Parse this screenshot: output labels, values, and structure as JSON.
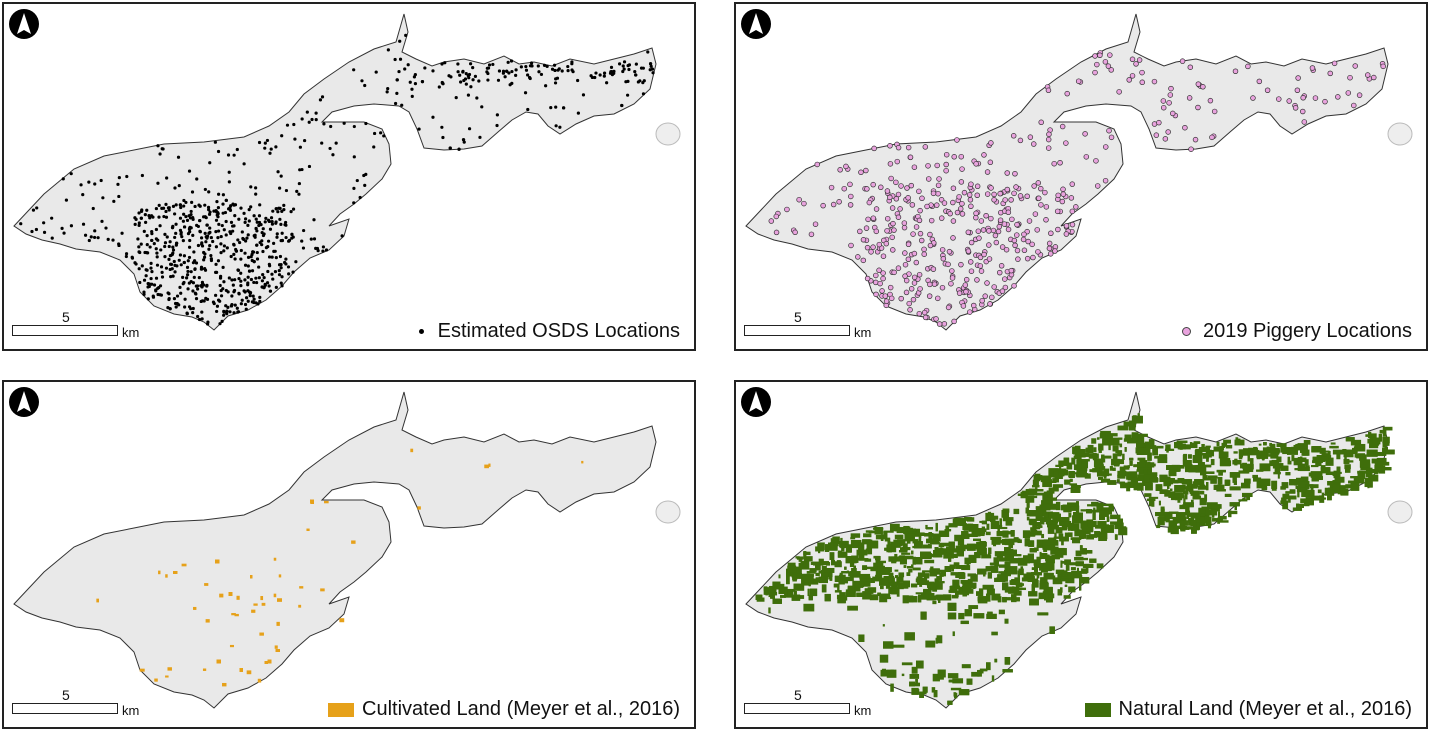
{
  "panels": [
    {
      "id": "osds",
      "legend_label": "Estimated OSDS Locations",
      "legend_symbol": "dot",
      "legend_color": "#000000",
      "scale_value": "5",
      "scale_unit": "km"
    },
    {
      "id": "piggery",
      "legend_label": "2019 Piggery Locations",
      "legend_symbol": "circle",
      "legend_color": "#e9a3de",
      "scale_value": "5",
      "scale_unit": "km"
    },
    {
      "id": "cultivated",
      "legend_label": "Cultivated Land (Meyer et al., 2016)",
      "legend_symbol": "box",
      "legend_color": "#e6a11a",
      "scale_value": "5",
      "scale_unit": "km"
    },
    {
      "id": "natural",
      "legend_label": "Natural Land (Meyer et al., 2016)",
      "legend_symbol": "box",
      "legend_color": "#3f6e0b",
      "scale_value": "5",
      "scale_unit": "km"
    }
  ],
  "colors": {
    "land": "#e9e9e9",
    "outline": "#333333",
    "frame": "#222222"
  },
  "icons": {
    "north_arrow": "north-arrow-icon"
  }
}
